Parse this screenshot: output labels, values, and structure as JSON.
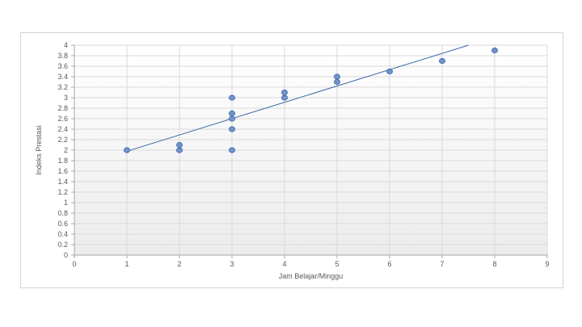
{
  "chart_data": {
    "type": "scatter",
    "title": "",
    "xlabel": "Jam Belajar/Minggu",
    "ylabel": "Indeks Prestasi",
    "xlim": [
      0,
      9
    ],
    "ylim": [
      0,
      4
    ],
    "x_ticks": [
      "0",
      "1",
      "2",
      "3",
      "4",
      "5",
      "6",
      "7",
      "8",
      "9"
    ],
    "y_ticks": [
      "0",
      "0.2",
      "0.4",
      "0.6",
      "0.8",
      "1",
      "1.2",
      "1.4",
      "1.6",
      "1.8",
      "2",
      "2.2",
      "2.4",
      "2.6",
      "2.8",
      "3",
      "3.2",
      "3.4",
      "3.6",
      "3.8",
      "4"
    ],
    "grid": true,
    "legend": "none",
    "points": [
      {
        "x": 1,
        "y": 2.0
      },
      {
        "x": 2,
        "y": 2.0
      },
      {
        "x": 2,
        "y": 2.1
      },
      {
        "x": 3,
        "y": 2.0
      },
      {
        "x": 3,
        "y": 2.4
      },
      {
        "x": 3,
        "y": 2.6
      },
      {
        "x": 3,
        "y": 2.7
      },
      {
        "x": 3,
        "y": 3.0
      },
      {
        "x": 4,
        "y": 3.0
      },
      {
        "x": 4,
        "y": 3.1
      },
      {
        "x": 5,
        "y": 3.3
      },
      {
        "x": 5,
        "y": 3.4
      },
      {
        "x": 6,
        "y": 3.5
      },
      {
        "x": 7,
        "y": 3.7
      },
      {
        "x": 8,
        "y": 3.9
      }
    ],
    "trendline": {
      "x_start": 1,
      "y_start": 1.98,
      "x_end": 7.5,
      "y_end": 4.0
    },
    "colors": {
      "marker_fill": "#6f93cc",
      "marker_stroke": "#3f6aa6",
      "trendline": "#3a67a8",
      "gridline": "#d9d9d9",
      "plot_bg_top": "#ffffff",
      "plot_bg_bottom": "#ececec",
      "axis": "#a6a6a6"
    }
  }
}
